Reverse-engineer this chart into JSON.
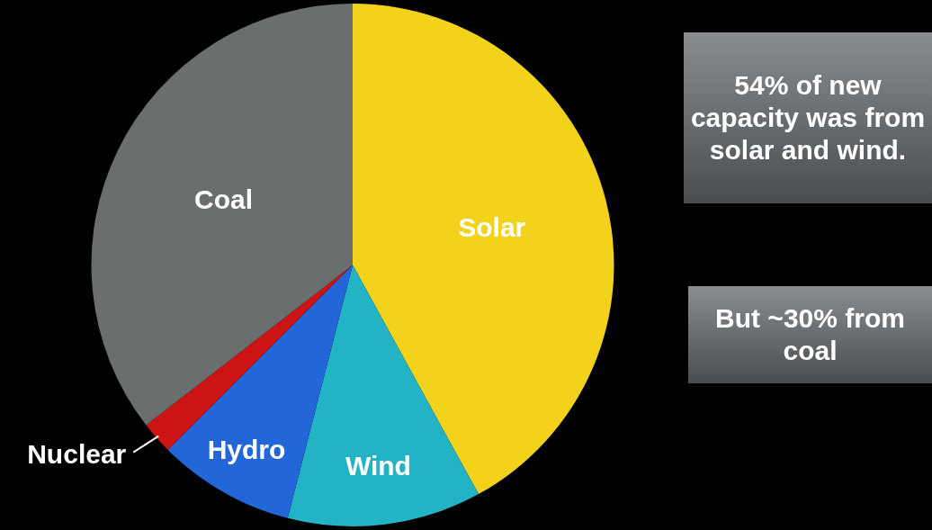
{
  "chart_data": {
    "type": "pie",
    "categories": [
      "Solar",
      "Wind",
      "Hydro",
      "Nuclear",
      "Coal"
    ],
    "values": [
      42,
      12,
      8.5,
      2,
      35.5
    ],
    "colors": [
      "#f2d21a",
      "#22b4c4",
      "#2266d8",
      "#cc1414",
      "#6a6e6f"
    ],
    "legend": false,
    "annotations": [
      "54% of new capacity was from solar and wind.",
      "But ~30% from coal"
    ]
  }
}
